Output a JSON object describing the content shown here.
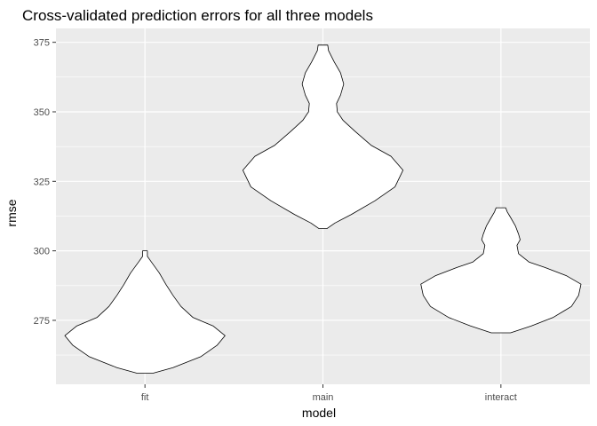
{
  "chart_data": {
    "type": "violin",
    "title": "Cross-validated prediction errors for all three models",
    "xlabel": "model",
    "ylabel": "rmse",
    "categories": [
      "fit",
      "main",
      "interact"
    ],
    "ylim": [
      252,
      380
    ],
    "yticks": [
      275,
      300,
      325,
      350,
      375
    ],
    "grid": true,
    "background": "#ebebeb",
    "grid_color": "#ffffff",
    "violin_fill": "#ffffff",
    "violin_stroke": "#000000",
    "violins": [
      {
        "category": "fit",
        "min": 256,
        "max": 300,
        "density": [
          [
            256,
            0.1
          ],
          [
            258,
            0.35
          ],
          [
            262,
            0.7
          ],
          [
            266,
            0.9
          ],
          [
            269.5,
            1.0
          ],
          [
            273,
            0.85
          ],
          [
            276,
            0.6
          ],
          [
            280,
            0.45
          ],
          [
            284,
            0.35
          ],
          [
            288,
            0.26
          ],
          [
            292,
            0.18
          ],
          [
            296,
            0.08
          ],
          [
            298,
            0.03
          ],
          [
            300,
            0.03
          ]
        ]
      },
      {
        "category": "main",
        "min": 308,
        "max": 374,
        "density": [
          [
            308,
            0.05
          ],
          [
            310,
            0.15
          ],
          [
            313,
            0.35
          ],
          [
            318,
            0.65
          ],
          [
            323,
            0.9
          ],
          [
            329,
            1.0
          ],
          [
            334,
            0.85
          ],
          [
            338,
            0.6
          ],
          [
            343,
            0.4
          ],
          [
            347,
            0.25
          ],
          [
            350,
            0.18
          ],
          [
            353,
            0.17
          ],
          [
            356,
            0.22
          ],
          [
            360,
            0.26
          ],
          [
            364,
            0.22
          ],
          [
            368,
            0.14
          ],
          [
            372,
            0.07
          ],
          [
            374,
            0.06
          ]
        ]
      },
      {
        "category": "interact",
        "min": 270.5,
        "max": 315.5,
        "density": [
          [
            270.5,
            0.12
          ],
          [
            273,
            0.38
          ],
          [
            276,
            0.65
          ],
          [
            280,
            0.88
          ],
          [
            284,
            0.97
          ],
          [
            288,
            1.0
          ],
          [
            291,
            0.82
          ],
          [
            294,
            0.55
          ],
          [
            296,
            0.35
          ],
          [
            299,
            0.22
          ],
          [
            302,
            0.2
          ],
          [
            304,
            0.24
          ],
          [
            306,
            0.22
          ],
          [
            309,
            0.18
          ],
          [
            312,
            0.12
          ],
          [
            314,
            0.08
          ],
          [
            315.5,
            0.06
          ]
        ]
      }
    ]
  }
}
